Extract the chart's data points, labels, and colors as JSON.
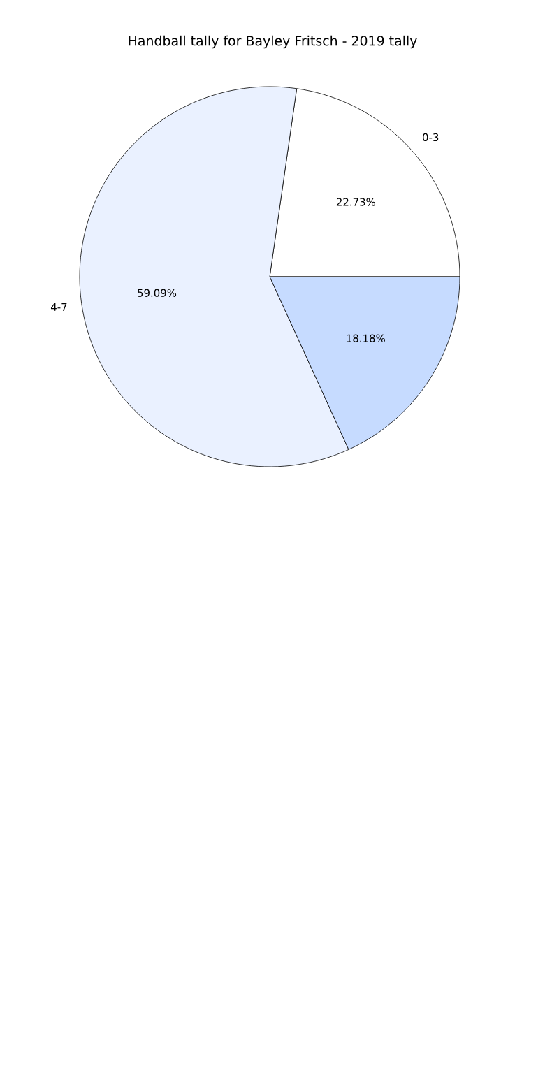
{
  "chart_data": {
    "type": "pie",
    "title": "Handball tally for Bayley Fritsch - 2019 tally",
    "categories": [
      "0-3",
      "4-7",
      null
    ],
    "values": [
      22.73,
      59.09,
      18.18
    ],
    "value_labels": [
      "22.73%",
      "59.09%",
      "18.18%"
    ],
    "colors": [
      "#ffffff",
      "#eaf1ff",
      "#c6dbff"
    ]
  }
}
